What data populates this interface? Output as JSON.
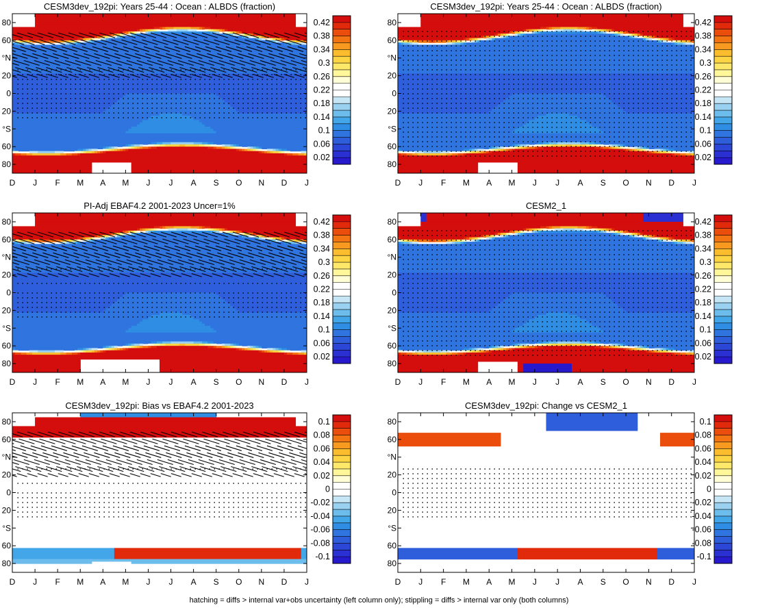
{
  "figure": {
    "footnote": "hatching = diffs > internal var+obs uncertainty (left column only); stippling = diffs > internal var only (both columns)"
  },
  "chart_data": [
    {
      "type": "heatmap",
      "panel": "row1-left",
      "title": "CESM3dev_192pi: Years 25-44 : Ocean : ALBDS (fraction)",
      "x_ticks": [
        "D",
        "J",
        "F",
        "M",
        "A",
        "M",
        "J",
        "J",
        "A",
        "S",
        "O",
        "N",
        "D",
        "J"
      ],
      "y_ticks": [
        "80",
        "60",
        "°N",
        "20",
        "0",
        "20",
        "°S",
        "60",
        "80"
      ],
      "colorbar": "abs",
      "field": "cesm3",
      "hatching": true,
      "stippling": "dense-tropics"
    },
    {
      "type": "heatmap",
      "panel": "row1-right",
      "title": "CESM3dev_192pi: Years 25-44 : Ocean : ALBDS (fraction)",
      "x_ticks": [
        "D",
        "J",
        "F",
        "M",
        "A",
        "M",
        "J",
        "J",
        "A",
        "S",
        "O",
        "N",
        "D",
        "J"
      ],
      "y_ticks": [
        "80",
        "60",
        "°N",
        "20",
        "0",
        "20",
        "°S",
        "60",
        "80"
      ],
      "colorbar": "abs",
      "field": "cesm3",
      "hatching": false,
      "stippling": "dense-full"
    },
    {
      "type": "heatmap",
      "panel": "row2-left",
      "title": "PI-Adj EBAF4.2 2001-2023 Uncer=1%",
      "x_ticks": [
        "D",
        "J",
        "F",
        "M",
        "A",
        "M",
        "J",
        "J",
        "A",
        "S",
        "O",
        "N",
        "D",
        "J"
      ],
      "y_ticks": [
        "80",
        "60",
        "°N",
        "20",
        "0",
        "20",
        "°S",
        "60",
        "80"
      ],
      "colorbar": "abs",
      "field": "ebaf",
      "hatching": true,
      "stippling": "light"
    },
    {
      "type": "heatmap",
      "panel": "row2-right",
      "title": "CESM2_1",
      "x_ticks": [
        "D",
        "J",
        "F",
        "M",
        "A",
        "M",
        "J",
        "J",
        "A",
        "S",
        "O",
        "N",
        "D",
        "J"
      ],
      "y_ticks": [
        "80",
        "60",
        "°N",
        "20",
        "0",
        "20",
        "°S",
        "60",
        "80"
      ],
      "colorbar": "abs",
      "field": "cesm2",
      "hatching": false,
      "stippling": "dense-full"
    },
    {
      "type": "heatmap",
      "panel": "row3-left",
      "title": "CESM3dev_192pi: Bias vs EBAF4.2 2001-2023",
      "x_ticks": [
        "D",
        "J",
        "F",
        "M",
        "A",
        "M",
        "J",
        "J",
        "A",
        "S",
        "O",
        "N",
        "D",
        "J"
      ],
      "y_ticks": [
        "80",
        "60",
        "°N",
        "20",
        "0",
        "20",
        "°S",
        "60",
        "80"
      ],
      "colorbar": "diff",
      "field": "bias",
      "hatching": true,
      "stippling": "light"
    },
    {
      "type": "heatmap",
      "panel": "row3-right",
      "title": "CESM3dev_192pi: Change vs CESM2_1",
      "x_ticks": [
        "D",
        "J",
        "F",
        "M",
        "A",
        "M",
        "J",
        "J",
        "A",
        "S",
        "O",
        "N",
        "D",
        "J"
      ],
      "y_ticks": [
        "80",
        "60",
        "°N",
        "20",
        "0",
        "20",
        "°S",
        "60",
        "80"
      ],
      "colorbar": "diff",
      "field": "change",
      "hatching": false,
      "stippling": "dense-tropics"
    }
  ],
  "colorbars": {
    "abs": {
      "labels": [
        "0.42",
        "0.38",
        "0.34",
        "0.3",
        "0.26",
        "0.22",
        "0.18",
        "0.14",
        "0.1",
        "0.06",
        "0.02"
      ],
      "colors": [
        "#d40d0d",
        "#e02a0b",
        "#ea4d0c",
        "#f27412",
        "#f79a1f",
        "#fbbd2e",
        "#fdd544",
        "#fee86a",
        "#fff79a",
        "#fffdd6",
        "#ffffff",
        "#ffffff",
        "#c6e6f6",
        "#9ad1f1",
        "#6cbdec",
        "#42a6e8",
        "#2f8de3",
        "#2f74df",
        "#2f5edb",
        "#2c47d6",
        "#2a30d2",
        "#2719cc"
      ]
    },
    "diff": {
      "labels": [
        "0.1",
        "0.08",
        "0.06",
        "0.04",
        "0.02",
        "0",
        "-0.02",
        "-0.04",
        "-0.06",
        "-0.08",
        "-0.1"
      ],
      "colors": [
        "#d40d0d",
        "#e02a0b",
        "#ea4d0c",
        "#f27412",
        "#f79a1f",
        "#fbbd2e",
        "#fdd544",
        "#fee86a",
        "#fff79a",
        "#fffdd6",
        "#ffffff",
        "#ffffff",
        "#c6e6f6",
        "#9ad1f1",
        "#6cbdec",
        "#42a6e8",
        "#2f8de3",
        "#2f74df",
        "#2f5edb",
        "#2c47d6",
        "#2a30d2",
        "#2719cc"
      ]
    }
  }
}
